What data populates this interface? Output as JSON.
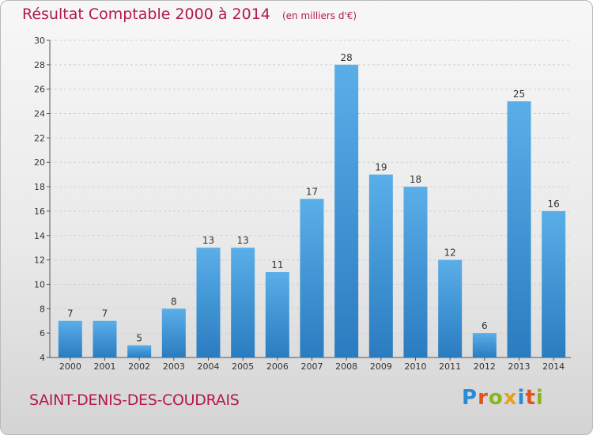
{
  "chart_data": {
    "type": "bar",
    "title": "Résultat Comptable 2000 à 2014",
    "subtitle": "(en milliers d'€)",
    "categories": [
      "2000",
      "2001",
      "2002",
      "2003",
      "2004",
      "2005",
      "2006",
      "2007",
      "2008",
      "2009",
      "2010",
      "2011",
      "2012",
      "2013",
      "2014"
    ],
    "values": [
      7,
      7,
      5,
      8,
      13,
      13,
      11,
      17,
      28,
      19,
      18,
      12,
      6,
      25,
      16
    ],
    "ylim": [
      4,
      30
    ],
    "yticks": [
      4,
      6,
      8,
      10,
      12,
      14,
      16,
      18,
      20,
      22,
      24,
      26,
      28,
      30
    ],
    "xlabel": "",
    "ylabel": "",
    "grid": true,
    "bar_color_top": "#5aaee8",
    "bar_color_bottom": "#2a7cc0"
  },
  "footer": {
    "town": "SAINT-DENIS-DES-COUDRAIS",
    "brand": "Proxiti"
  },
  "colors": {
    "accent": "#b3194b"
  }
}
